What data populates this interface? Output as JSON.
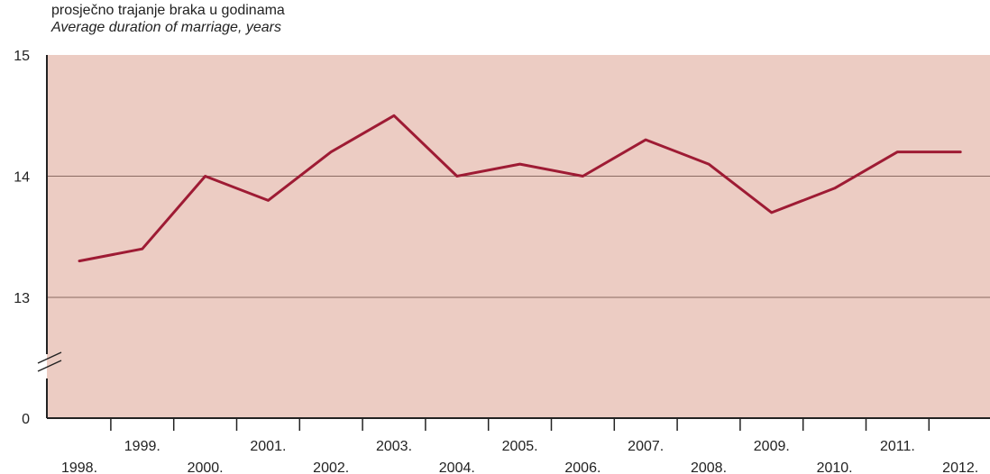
{
  "chart_data": {
    "type": "line",
    "ylabel_hr": "prosječno trajanje braka u godinama",
    "ylabel_en": "Average duration of marriage, years",
    "y_ticks": [
      {
        "value": 15,
        "label": "15"
      },
      {
        "value": 14,
        "label": "14"
      },
      {
        "value": 13,
        "label": "13"
      },
      {
        "value": 0,
        "label": "0"
      }
    ],
    "ylim": [
      12.0,
      15.0
    ],
    "axis_break": true,
    "grid": true,
    "categories": [
      "1998.",
      "1999.",
      "2000.",
      "2001.",
      "2002.",
      "2003.",
      "2004.",
      "2005.",
      "2006.",
      "2007.",
      "2008.",
      "2009.",
      "2010.",
      "2011.",
      "2012."
    ],
    "series": [
      {
        "values": [
          13.3,
          13.4,
          14.0,
          13.8,
          14.2,
          14.5,
          14.0,
          14.1,
          14.0,
          14.3,
          14.1,
          13.7,
          13.9,
          14.2,
          14.2
        ]
      }
    ],
    "colors": {
      "plot_bg": "#ecccc3",
      "line": "#9e1b34",
      "grid": "#8a6a62",
      "axis": "#222222"
    }
  }
}
